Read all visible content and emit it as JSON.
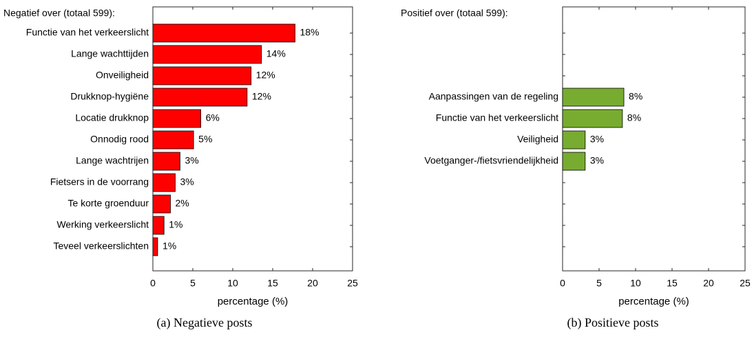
{
  "chart_data": [
    {
      "type": "bar",
      "orientation": "horizontal",
      "title": "Negatief over (totaal 599):",
      "categories": [
        "Functie van het verkeerslicht",
        "Lange wachttijden",
        "Onveiligheid",
        "Drukknop-hygiëne",
        "Locatie drukknop",
        "Onnodig rood",
        "Lange wachtrijen",
        "Fietsers in de voorrang",
        "Te korte groenduur",
        "Werking verkeerslicht",
        "Teveel verkeerslichten"
      ],
      "values": [
        17.8,
        13.6,
        12.3,
        11.8,
        6.0,
        5.1,
        3.4,
        2.8,
        2.2,
        1.4,
        0.6
      ],
      "value_labels": [
        "18%",
        "14%",
        "12%",
        "12%",
        "6%",
        "5%",
        "3%",
        "3%",
        "2%",
        "1%",
        "1%"
      ],
      "color": "#ff0000",
      "xlim": [
        0,
        25
      ],
      "xticks": [
        0,
        5,
        10,
        15,
        20,
        25
      ],
      "xlabel": "percentage (%)",
      "caption": "(a) Negatieve posts"
    },
    {
      "type": "bar",
      "orientation": "horizontal",
      "title": "Positief over (totaal 599):",
      "categories": [
        null,
        null,
        null,
        "Aanpassingen van de regeling",
        "Functie van het verkeerslicht",
        "Veiligheid",
        "Voetganger-/fietsvriendelijkheid",
        null,
        null,
        null,
        null
      ],
      "values": [
        null,
        null,
        null,
        8.4,
        8.2,
        3.1,
        3.1,
        null,
        null,
        null,
        null
      ],
      "value_labels": [
        null,
        null,
        null,
        "8%",
        "8%",
        "3%",
        "3%",
        null,
        null,
        null,
        null
      ],
      "color": "#77ac30",
      "xlim": [
        0,
        25
      ],
      "xticks": [
        0,
        5,
        10,
        15,
        20,
        25
      ],
      "xlabel": "percentage (%)",
      "caption": "(b) Positieve posts"
    }
  ]
}
